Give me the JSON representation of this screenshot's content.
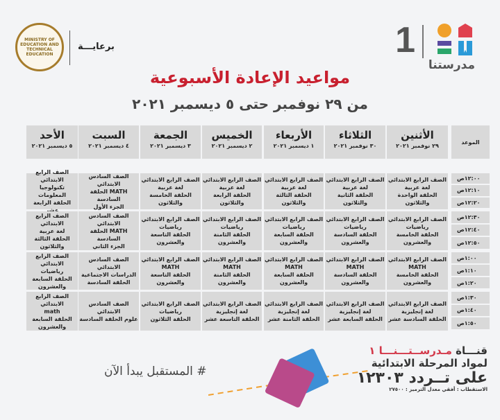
{
  "header": {
    "logo_text": "مدرستنا",
    "logo_number": "1",
    "sponsor_label": "برعايـــة",
    "ministry_seal_text": "MINISTRY OF EDUCATION AND TECHNICAL EDUCATION",
    "title": "مواعيد الإعادة الأسبوعية",
    "subtitle": "من ٢٩ نوفمبر حتى ٥ ديسمبر ٢٠٢١"
  },
  "colors": {
    "title": "#c8202f",
    "cell_bg": "#d9d9d9",
    "background": "#f3f4f6"
  },
  "table": {
    "time_header": "الموعد",
    "days": [
      {
        "day": "الأثنين",
        "date": "٢٩ نوفمبر ٢٠٢١"
      },
      {
        "day": "الثلاثاء",
        "date": "٣٠ نوفمبر ٢٠٢١"
      },
      {
        "day": "الأربعاء",
        "date": "١ ديسمبر ٢٠٢١"
      },
      {
        "day": "الخميس",
        "date": "٢ ديسمبر ٢٠٢١"
      },
      {
        "day": "الجمعة",
        "date": "٣ ديسمبر ٢٠٢١"
      },
      {
        "day": "السبت",
        "date": "٤ ديسمبر ٢٠٢١"
      },
      {
        "day": "الأحد",
        "date": "٥ ديسمبر ٢٠٢١"
      }
    ],
    "times": [
      "١٢:٠٠ص",
      "١٢:١٠ص",
      "١٢:٢٠ص",
      "١٢:٣٠ص",
      "١٢:٤٠ص",
      "١٢:٥٠ص",
      "١:٠٠ص",
      "١:١٠ص",
      "١:٢٠ص",
      "١:٣٠ص",
      "١:٤٠ص",
      "١:٥٠ص"
    ],
    "rows": [
      [
        [
          "الصف الرابع الابتدائي",
          "لغة عربية",
          "الحلقة الواحدة والثلاثون"
        ],
        [
          "الصف الرابع الابتدائي",
          "لغة عربية",
          "الحلقة الثانية والثلاثون"
        ],
        [
          "الصف الرابع الابتدائي",
          "لغة عربية",
          "الحلقة الثالثة والثلاثون"
        ],
        [
          "الصف الرابع الابتدائي",
          "لغة عربية",
          "الحلقة الرابعة والثلاثون"
        ],
        [
          "الصف الرابع الابتدائي",
          "لغة عربية",
          "الحلقة الخامسة والثلاثون"
        ],
        [
          "الصف السادس الابتدائي",
          "MATH الحلقة السادسة",
          "الجزء الأول"
        ],
        [
          "الصف الرابع الابتدائي",
          "تكنولوجيا المعلومات",
          "الحلقة الرابعة عشر"
        ]
      ],
      [
        [
          "الصف الرابع الابتدائي",
          "رياضيات",
          "الحلقة الخامسة",
          "والعشرون"
        ],
        [
          "الصف الرابع الابتدائي",
          "رياضيات",
          "الحلقة السادسة",
          "والعشرون"
        ],
        [
          "الصف الرابع الابتدائي",
          "رياضيات",
          "الحلقة السابعة والعشرون"
        ],
        [
          "الصف الرابع الابتدائي",
          "رياضيات",
          "الحلقة الثامنة والعشرون"
        ],
        [
          "الصف الرابع الابتدائي",
          "رياضيات",
          "الحلقة التاسعة والعشرون"
        ],
        [
          "الصف السادس الابتدائي",
          "MATH الحلقة السادسة",
          "الجزء الثاني"
        ],
        [
          "الصف الرابع الابتدائي",
          "لغة عربية",
          "الحلقة الثالثة والثلاثون"
        ]
      ],
      [
        [
          "الصف الرابع الابتدائي",
          "MATH",
          "الحلقة الخامسة",
          "والعشرون"
        ],
        [
          "الصف الرابع الابتدائي",
          "MATH",
          "الحلقة السادسة",
          "والعشرون"
        ],
        [
          "الصف الرابع الابتدائي",
          "MATH",
          "الحلقة السابعة والعشرون"
        ],
        [
          "الصف الرابع الابتدائي",
          "MATH",
          "الحلقة الثامنة والعشرون"
        ],
        [
          "الصف الرابع الابتدائي",
          "MATH",
          "الحلقة التاسعة والعشرون"
        ],
        [
          "الصف السادس الابتدائي",
          "الدراسات الاجتماعية",
          "الحلقة السادسة"
        ],
        [
          "الصف الرابع الابتدائي",
          "رياضيات",
          "الحلقة السابعة والعشرون"
        ]
      ],
      [
        [
          "الصف الرابع الابتدائي",
          "لغة إنجليزية",
          "الحلقة السادسة عشر"
        ],
        [
          "الصف الرابع الابتدائي",
          "لغة إنجليزية",
          "الحلقة السابعة عشر"
        ],
        [
          "الصف الرابع الابتدائي",
          "لغة إنجليزية",
          "الحلقة الثامنة عشر"
        ],
        [
          "الصف الرابع الابتدائي",
          "لغة إنجليزية",
          "الحلقة التاسعة عشر"
        ],
        [
          "الصف الرابع الابتدائي",
          "رياضيات",
          "الحلقة الثلاثون"
        ],
        [
          "الصف السادس الابتدائي",
          "علوم   الحلقة السادسة"
        ],
        [
          "الصف الرابع الابتدائي",
          "math",
          "الحلقة السابعة والعشرون"
        ]
      ]
    ]
  },
  "footer": {
    "slogan": "# المستقبل يبدأ الآن",
    "channel_prefix": "قنـــاة ",
    "channel_name": "مـدرســتـــنـــا ١",
    "line2": "لمواد المرحلة الابتدائية",
    "line3": "على تــردد ١٢٣٠٣",
    "line4": "الاستقطاب : أفقي معدل الترميز : ٢٧٥٠٠"
  }
}
